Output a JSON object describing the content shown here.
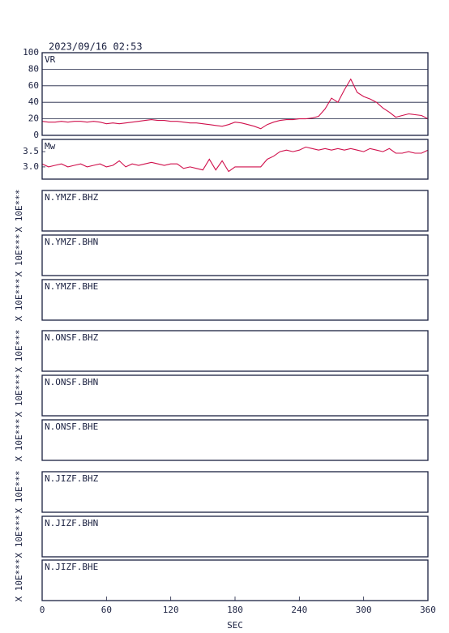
{
  "header": "2023/09/16 02:53",
  "x_axis": {
    "xlim": [
      0,
      360
    ],
    "xticks": [
      0,
      60,
      120,
      180,
      240,
      300,
      360
    ],
    "xlabel": "SEC"
  },
  "chart_data": [
    {
      "type": "line",
      "label": "VR",
      "color": "#d0104c",
      "grid": true,
      "ylim": [
        0,
        100
      ],
      "yticks": [
        0,
        20,
        40,
        60,
        80,
        100
      ],
      "x": [
        0,
        6,
        12,
        18,
        24,
        30,
        36,
        42,
        48,
        54,
        60,
        66,
        72,
        78,
        84,
        90,
        96,
        102,
        108,
        114,
        120,
        126,
        132,
        138,
        144,
        150,
        156,
        162,
        168,
        174,
        180,
        186,
        192,
        198,
        204,
        210,
        216,
        222,
        228,
        234,
        240,
        246,
        252,
        258,
        264,
        270,
        276,
        282,
        288,
        294,
        300,
        306,
        312,
        318,
        324,
        330,
        336,
        342,
        348,
        354,
        360
      ],
      "values": [
        17,
        16,
        16,
        17,
        16,
        17,
        17,
        16,
        17,
        16,
        14,
        15,
        14,
        15,
        16,
        17,
        18,
        19,
        18,
        18,
        17,
        17,
        16,
        15,
        15,
        14,
        13,
        12,
        11,
        13,
        16,
        15,
        13,
        11,
        8,
        13,
        16,
        18,
        19,
        19,
        20,
        20,
        21,
        23,
        32,
        45,
        40,
        55,
        68,
        52,
        47,
        44,
        40,
        33,
        28,
        22,
        24,
        26,
        25,
        24,
        20
      ]
    },
    {
      "type": "line",
      "label": "Mw",
      "color": "#d0104c",
      "grid": false,
      "ylim": [
        2.6,
        3.9
      ],
      "yticks": [
        {
          "value": 3,
          "label": "3.0"
        },
        3.5
      ],
      "x": [
        0,
        6,
        12,
        18,
        24,
        30,
        36,
        42,
        48,
        54,
        60,
        66,
        72,
        78,
        84,
        90,
        96,
        102,
        108,
        114,
        120,
        126,
        132,
        138,
        144,
        150,
        156,
        162,
        168,
        174,
        180,
        186,
        192,
        198,
        204,
        210,
        216,
        222,
        228,
        234,
        240,
        246,
        252,
        258,
        264,
        270,
        276,
        282,
        288,
        294,
        300,
        306,
        312,
        318,
        324,
        330,
        336,
        342,
        348,
        354,
        360
      ],
      "values": [
        3.1,
        3.0,
        3.05,
        3.1,
        3.0,
        3.05,
        3.1,
        3.0,
        3.05,
        3.1,
        3.0,
        3.05,
        3.2,
        3.0,
        3.1,
        3.05,
        3.1,
        3.15,
        3.1,
        3.05,
        3.1,
        3.1,
        2.95,
        3.0,
        2.95,
        2.9,
        3.25,
        2.9,
        3.2,
        2.85,
        3.0,
        3.0,
        3.0,
        3.0,
        3.0,
        3.25,
        3.35,
        3.5,
        3.55,
        3.5,
        3.55,
        3.65,
        3.6,
        3.55,
        3.6,
        3.55,
        3.6,
        3.55,
        3.6,
        3.55,
        3.5,
        3.6,
        3.55,
        3.5,
        3.6,
        3.45,
        3.45,
        3.5,
        3.45,
        3.45,
        3.55
      ]
    },
    {
      "type": "waveform",
      "label": "N.YMZF.BHZ",
      "ylabel": "X 10E***"
    },
    {
      "type": "waveform",
      "label": "N.YMZF.BHN",
      "ylabel": "X 10E***"
    },
    {
      "type": "waveform",
      "label": "N.YMZF.BHE",
      "ylabel": "X 10E***"
    },
    {
      "type": "waveform",
      "label": "N.ONSF.BHZ",
      "ylabel": "X 10E***"
    },
    {
      "type": "waveform",
      "label": "N.ONSF.BHN",
      "ylabel": "X 10E***"
    },
    {
      "type": "waveform",
      "label": "N.ONSF.BHE",
      "ylabel": "X 10E***"
    },
    {
      "type": "waveform",
      "label": "N.JIZF.BHZ",
      "ylabel": "X 10E***"
    },
    {
      "type": "waveform",
      "label": "N.JIZF.BHN",
      "ylabel": "X 10E***"
    },
    {
      "type": "waveform",
      "label": "N.JIZF.BHE",
      "ylabel": "X 10E***"
    }
  ]
}
